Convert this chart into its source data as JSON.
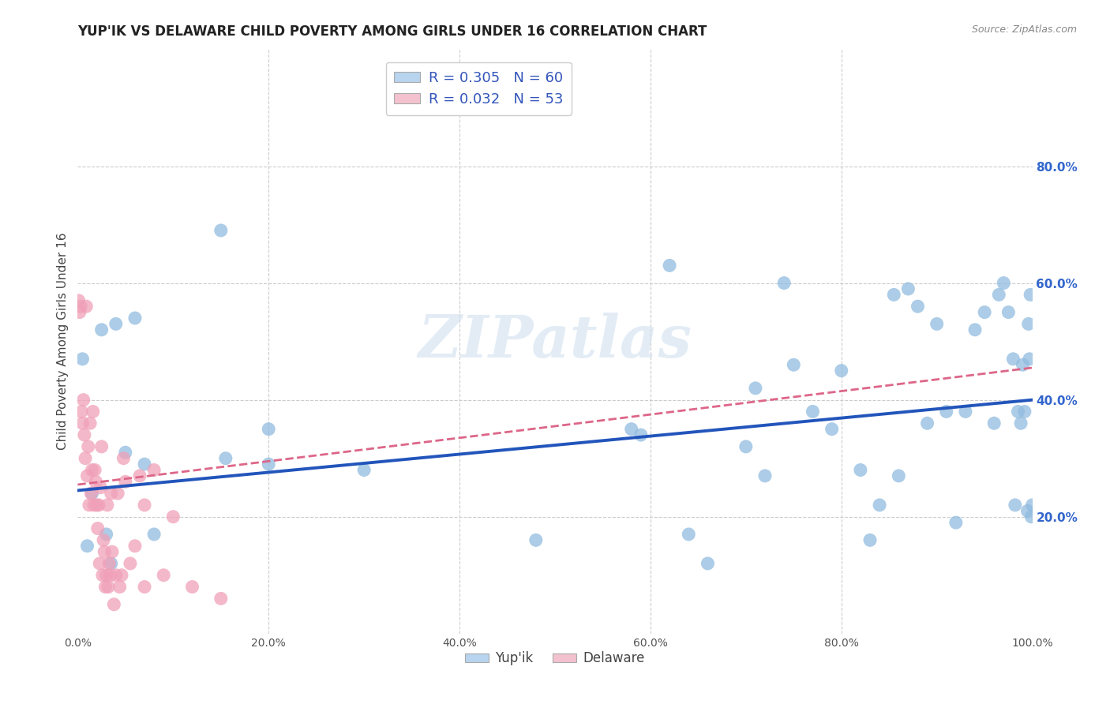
{
  "title": "YUP'IK VS DELAWARE CHILD POVERTY AMONG GIRLS UNDER 16 CORRELATION CHART",
  "source": "Source: ZipAtlas.com",
  "ylabel": "Child Poverty Among Girls Under 16",
  "watermark": "ZIPatlas",
  "legend_r_entries": [
    {
      "label": "R = 0.305",
      "n_label": "N = 60",
      "color": "#b8d4ee"
    },
    {
      "label": "R = 0.032",
      "n_label": "N = 53",
      "color": "#f4c2cf"
    }
  ],
  "legend_labels": [
    "Yup'ik",
    "Delaware"
  ],
  "yupik_color": "#90bbdf",
  "delaware_color": "#f0a0b8",
  "yupik_line_color": "#2255bb",
  "delaware_line_color": "#dd6688",
  "background_color": "#ffffff",
  "grid_color": "#cccccc",
  "xlim": [
    0,
    1.0
  ],
  "ylim": [
    0,
    1.0
  ],
  "xtick_labels": [
    "0.0%",
    "20.0%",
    "40.0%",
    "60.0%",
    "80.0%",
    "100.0%"
  ],
  "xtick_vals": [
    0,
    0.2,
    0.4,
    0.6,
    0.8,
    1.0
  ],
  "ytick_labels": [
    "20.0%",
    "40.0%",
    "60.0%",
    "80.0%"
  ],
  "ytick_vals": [
    0.2,
    0.4,
    0.6,
    0.8
  ],
  "yupik_x": [
    0.005,
    0.01,
    0.015,
    0.025,
    0.03,
    0.035,
    0.04,
    0.05,
    0.06,
    0.07,
    0.08,
    0.15,
    0.155,
    0.2,
    0.2,
    0.3,
    0.48,
    0.58,
    0.59,
    0.62,
    0.64,
    0.66,
    0.7,
    0.71,
    0.72,
    0.74,
    0.75,
    0.77,
    0.79,
    0.8,
    0.82,
    0.83,
    0.84,
    0.855,
    0.86,
    0.87,
    0.88,
    0.89,
    0.9,
    0.91,
    0.92,
    0.93,
    0.94,
    0.95,
    0.96,
    0.965,
    0.97,
    0.975,
    0.98,
    0.982,
    0.985,
    0.988,
    0.99,
    0.992,
    0.995,
    0.996,
    0.997,
    0.998,
    0.999,
    1.0
  ],
  "yupik_y": [
    0.47,
    0.15,
    0.24,
    0.52,
    0.17,
    0.12,
    0.53,
    0.31,
    0.54,
    0.29,
    0.17,
    0.69,
    0.3,
    0.29,
    0.35,
    0.28,
    0.16,
    0.35,
    0.34,
    0.63,
    0.17,
    0.12,
    0.32,
    0.42,
    0.27,
    0.6,
    0.46,
    0.38,
    0.35,
    0.45,
    0.28,
    0.16,
    0.22,
    0.58,
    0.27,
    0.59,
    0.56,
    0.36,
    0.53,
    0.38,
    0.19,
    0.38,
    0.52,
    0.55,
    0.36,
    0.58,
    0.6,
    0.55,
    0.47,
    0.22,
    0.38,
    0.36,
    0.46,
    0.38,
    0.21,
    0.53,
    0.47,
    0.58,
    0.2,
    0.22
  ],
  "delaware_x": [
    0.001,
    0.002,
    0.003,
    0.004,
    0.005,
    0.006,
    0.007,
    0.008,
    0.009,
    0.01,
    0.011,
    0.012,
    0.013,
    0.014,
    0.015,
    0.016,
    0.017,
    0.018,
    0.019,
    0.02,
    0.021,
    0.022,
    0.023,
    0.024,
    0.025,
    0.026,
    0.027,
    0.028,
    0.029,
    0.03,
    0.031,
    0.032,
    0.033,
    0.034,
    0.035,
    0.036,
    0.038,
    0.04,
    0.042,
    0.044,
    0.046,
    0.048,
    0.05,
    0.055,
    0.06,
    0.065,
    0.07,
    0.08,
    0.09,
    0.1,
    0.12,
    0.15,
    0.07
  ],
  "delaware_y": [
    0.57,
    0.55,
    0.56,
    0.38,
    0.36,
    0.4,
    0.34,
    0.3,
    0.56,
    0.27,
    0.32,
    0.22,
    0.36,
    0.24,
    0.28,
    0.38,
    0.22,
    0.28,
    0.26,
    0.22,
    0.18,
    0.22,
    0.12,
    0.25,
    0.32,
    0.1,
    0.16,
    0.14,
    0.08,
    0.1,
    0.22,
    0.08,
    0.12,
    0.1,
    0.24,
    0.14,
    0.05,
    0.1,
    0.24,
    0.08,
    0.1,
    0.3,
    0.26,
    0.12,
    0.15,
    0.27,
    0.08,
    0.28,
    0.1,
    0.2,
    0.08,
    0.06,
    0.22
  ]
}
